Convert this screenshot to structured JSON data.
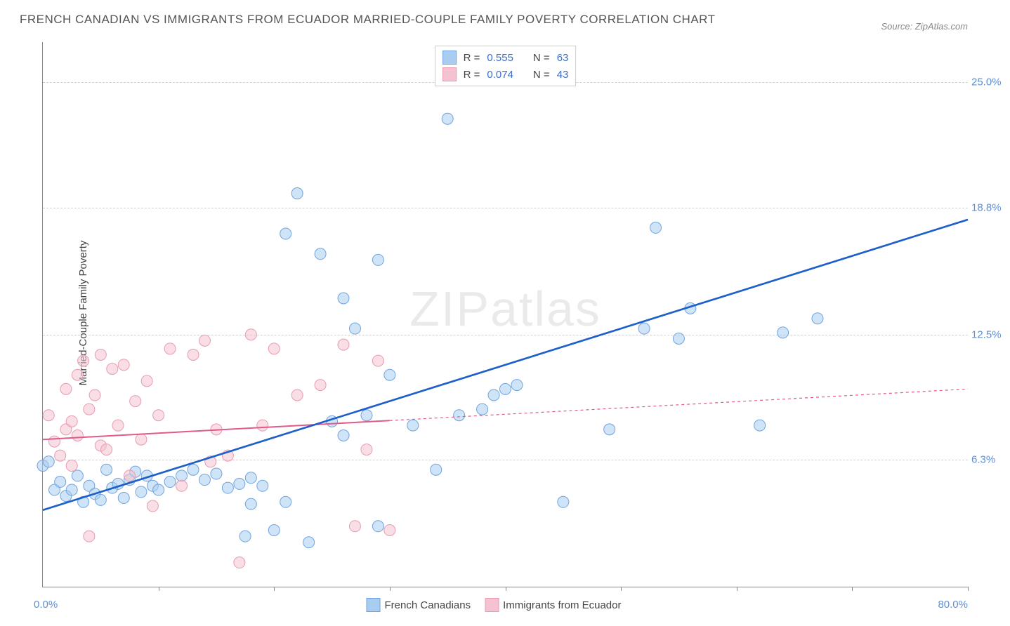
{
  "title": "FRENCH CANADIAN VS IMMIGRANTS FROM ECUADOR MARRIED-COUPLE FAMILY POVERTY CORRELATION CHART",
  "source": "Source: ZipAtlas.com",
  "watermark_bold": "ZIP",
  "watermark_thin": "atlas",
  "y_axis_label": "Married-Couple Family Poverty",
  "chart": {
    "type": "scatter",
    "background_color": "#ffffff",
    "grid_color": "#d0d0d0",
    "axis_color": "#888888",
    "xlim": [
      0,
      80
    ],
    "ylim": [
      0,
      27
    ],
    "x_tick_positions": [
      0,
      10,
      20,
      30,
      40,
      50,
      60,
      70,
      80
    ],
    "y_ticks": [
      {
        "value": 6.3,
        "label": "6.3%"
      },
      {
        "value": 12.5,
        "label": "12.5%"
      },
      {
        "value": 18.8,
        "label": "18.8%"
      },
      {
        "value": 25.0,
        "label": "25.0%"
      }
    ],
    "x_axis_min_label": "0.0%",
    "x_axis_max_label": "80.0%",
    "marker_radius": 8,
    "marker_opacity": 0.55,
    "series": [
      {
        "name": "French Canadians",
        "color": "#6fa3e0",
        "fill": "#a9cdf0",
        "line_color": "#1e60c9",
        "line_width": 2.5,
        "line_dash": "none",
        "R": "0.555",
        "N": "63",
        "trend_x1": 0,
        "trend_y1": 3.8,
        "trend_x2": 80,
        "trend_y2": 18.2,
        "solid_end_x": 80,
        "points": [
          [
            0,
            6
          ],
          [
            0.5,
            6.2
          ],
          [
            1,
            4.8
          ],
          [
            1.5,
            5.2
          ],
          [
            2,
            4.5
          ],
          [
            2.5,
            4.8
          ],
          [
            3,
            5.5
          ],
          [
            3.5,
            4.2
          ],
          [
            4,
            5.0
          ],
          [
            4.5,
            4.6
          ],
          [
            5,
            4.3
          ],
          [
            5.5,
            5.8
          ],
          [
            6,
            4.9
          ],
          [
            6.5,
            5.1
          ],
          [
            7,
            4.4
          ],
          [
            7.5,
            5.3
          ],
          [
            8,
            5.7
          ],
          [
            8.5,
            4.7
          ],
          [
            9,
            5.5
          ],
          [
            9.5,
            5.0
          ],
          [
            10,
            4.8
          ],
          [
            11,
            5.2
          ],
          [
            12,
            5.5
          ],
          [
            13,
            5.8
          ],
          [
            14,
            5.3
          ],
          [
            15,
            5.6
          ],
          [
            16,
            4.9
          ],
          [
            17,
            5.1
          ],
          [
            17.5,
            2.5
          ],
          [
            18,
            4.1
          ],
          [
            18,
            5.4
          ],
          [
            19,
            5.0
          ],
          [
            20,
            2.8
          ],
          [
            21,
            4.2
          ],
          [
            21,
            17.5
          ],
          [
            22,
            19.5
          ],
          [
            23,
            2.2
          ],
          [
            24,
            16.5
          ],
          [
            25,
            8.2
          ],
          [
            26,
            7.5
          ],
          [
            26,
            14.3
          ],
          [
            27,
            12.8
          ],
          [
            28,
            8.5
          ],
          [
            29,
            3.0
          ],
          [
            29,
            16.2
          ],
          [
            30,
            10.5
          ],
          [
            32,
            8.0
          ],
          [
            34,
            5.8
          ],
          [
            35,
            23.2
          ],
          [
            36,
            8.5
          ],
          [
            38,
            8.8
          ],
          [
            39,
            9.5
          ],
          [
            40,
            9.8
          ],
          [
            41,
            10.0
          ],
          [
            45,
            4.2
          ],
          [
            49,
            7.8
          ],
          [
            52,
            12.8
          ],
          [
            53,
            17.8
          ],
          [
            55,
            12.3
          ],
          [
            56,
            13.8
          ],
          [
            62,
            8.0
          ],
          [
            64,
            12.6
          ],
          [
            67,
            13.3
          ]
        ]
      },
      {
        "name": "Immigrants from Ecuador",
        "color": "#e89bb0",
        "fill": "#f4c2d0",
        "line_color": "#e05a8a",
        "line_width": 2,
        "line_dash": "4,4",
        "R": "0.074",
        "N": "43",
        "trend_x1": 0,
        "trend_y1": 7.3,
        "trend_x2": 80,
        "trend_y2": 9.8,
        "solid_end_x": 30,
        "points": [
          [
            0.5,
            8.5
          ],
          [
            1,
            7.2
          ],
          [
            1.5,
            6.5
          ],
          [
            2,
            9.8
          ],
          [
            2,
            7.8
          ],
          [
            2.5,
            8.2
          ],
          [
            2.5,
            6.0
          ],
          [
            3,
            10.5
          ],
          [
            3,
            7.5
          ],
          [
            3.5,
            11.2
          ],
          [
            4,
            8.8
          ],
          [
            4,
            2.5
          ],
          [
            4.5,
            9.5
          ],
          [
            5,
            7.0
          ],
          [
            5,
            11.5
          ],
          [
            5.5,
            6.8
          ],
          [
            6,
            10.8
          ],
          [
            6.5,
            8.0
          ],
          [
            7,
            11.0
          ],
          [
            7.5,
            5.5
          ],
          [
            8,
            9.2
          ],
          [
            8.5,
            7.3
          ],
          [
            9,
            10.2
          ],
          [
            9.5,
            4.0
          ],
          [
            10,
            8.5
          ],
          [
            11,
            11.8
          ],
          [
            12,
            5.0
          ],
          [
            13,
            11.5
          ],
          [
            14,
            12.2
          ],
          [
            14.5,
            6.2
          ],
          [
            15,
            7.8
          ],
          [
            16,
            6.5
          ],
          [
            17,
            1.2
          ],
          [
            18,
            12.5
          ],
          [
            19,
            8.0
          ],
          [
            20,
            11.8
          ],
          [
            22,
            9.5
          ],
          [
            24,
            10.0
          ],
          [
            26,
            12.0
          ],
          [
            27,
            3.0
          ],
          [
            28,
            6.8
          ],
          [
            29,
            11.2
          ],
          [
            30,
            2.8
          ]
        ]
      }
    ]
  },
  "legend_bottom": {
    "series1_label": "French Canadians",
    "series2_label": "Immigrants from Ecuador"
  },
  "legend_top": {
    "r_label": "R =",
    "n_label": "N ="
  }
}
